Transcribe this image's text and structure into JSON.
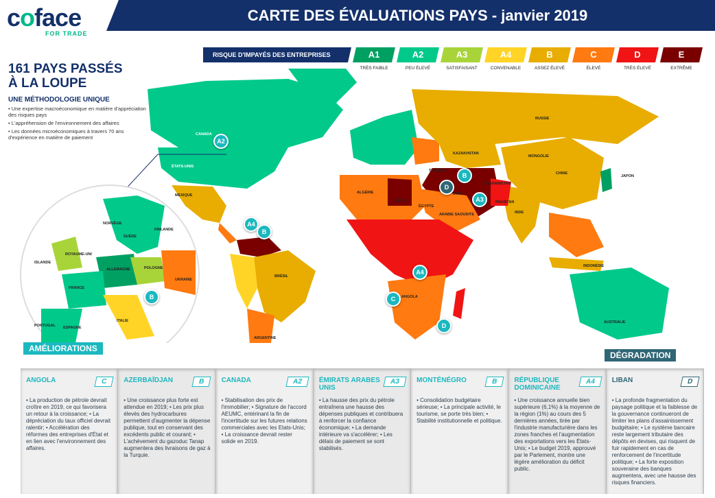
{
  "logo": {
    "brand": "coface",
    "tagline": "FOR TRADE"
  },
  "header": {
    "title": "CARTE DES ÉVALUATIONS PAYS - janvier 2019"
  },
  "legend": {
    "label": "RISQUE D'IMPAYÉS DES ENTREPRISES",
    "items": [
      {
        "code": "A1",
        "desc": "TRÈS FAIBLE",
        "color": "#00a062"
      },
      {
        "code": "A2",
        "desc": "PEU ÉLEVÉ",
        "color": "#00c98a"
      },
      {
        "code": "A3",
        "desc": "SATISFAISANT",
        "color": "#a8d43a"
      },
      {
        "code": "A4",
        "desc": "CONVENABLE",
        "color": "#ffd426"
      },
      {
        "code": "B",
        "desc": "ASSEZ ÉLEVÉ",
        "color": "#e8ad00"
      },
      {
        "code": "C",
        "desc": "ÉLEVÉ",
        "color": "#ff7a10"
      },
      {
        "code": "D",
        "desc": "TRÈS ÉLEVÉ",
        "color": "#f01414"
      },
      {
        "code": "E",
        "desc": "EXTRÊME",
        "color": "#7a0000"
      }
    ]
  },
  "intro": {
    "title_line1": "161 PAYS PASSÉS",
    "title_line2": "À LA LOUPE",
    "subtitle": "UNE MÉTHODOLOGIE UNIQUE",
    "bullets": [
      "• Une expertise macroéconomique en matière d'appréciation des risques pays",
      "• L'appréhension de l'environnement des affaires",
      "• Les données microéconomiques à travers 70 ans d'expérience en matière de paiement"
    ]
  },
  "map": {
    "labels": [
      "CANADA",
      "ÉTATS-UNIS",
      "MEXIQUE",
      "BRÉSIL",
      "ARGENTINE",
      "RUSSIE",
      "KAZAKHSTAN",
      "CHINE",
      "INDE",
      "MONGOLIE",
      "IRAN",
      "TURQUIE",
      "LIBYE",
      "ALGÉRIE",
      "ÉGYPTE",
      "AUSTRALIE",
      "NORVÈGE",
      "SUÈDE",
      "FINLANDE",
      "ALLEMAGNE",
      "FRANCE",
      "ESPAGNE",
      "ITALIE",
      "POLOGNE",
      "UKRAINE",
      "ROYAUME-UNI",
      "ISLANDE",
      "PORTUGAL",
      "ANGOLA",
      "ARABIE SAOUDITE",
      "PAKISTAN",
      "AFGHANISTAN",
      "JAPON",
      "INDONÉSIE"
    ],
    "badges": [
      "A2",
      "A4",
      "B",
      "B",
      "D",
      "A3",
      "A4",
      "C",
      "D",
      "B"
    ]
  },
  "callouts": {
    "improvements": "AMÉLIORATIONS",
    "downgrade": "DÉGRADATION"
  },
  "panels": [
    {
      "country": "ANGOLA",
      "rating": "C",
      "text": "• La production de pétrole devrait croître en 2019, ce qui favorisera un retour à la croissance; • La dépréciation du taux officiel devrait ralentir; • Accélération des réformes des entreprises d'État et en lien avec l'environnement des affaires."
    },
    {
      "country": "AZERBAÏDJAN",
      "rating": "B",
      "text": "• Une croissance plus forte est attendue en 2019; • Les prix plus élevés des hydrocarbures permettent d'augmenter la dépense publique, tout en conservant des excédents public et courant; • L'achèvement du gazoduc Tanap augmentera des livraisons de gaz à la Turquie."
    },
    {
      "country": "CANADA",
      "rating": "A2",
      "text": "• Stabilisation des prix de l'immobilier; • Signature de l'accord AEUMC, entérinant la fin de l'incertitude sur les futures relations commerciales avec les Etats-Unis; • La croissance devrait rester solide en 2019."
    },
    {
      "country": "ÉMIRATS ARABES UNIS",
      "rating": "A3",
      "text": "• La hausse des prix du pétrole entraînera une hausse des dépenses publiques et contribuera à renforcer la confiance économique; • La demande intérieure va s'accélérer; • Les délais de paiement se sont stabilisés."
    },
    {
      "country": "MONTÉNÉGRO",
      "rating": "B",
      "text": "• Consolidation budgétaire sérieuse; • La principale activité, le tourisme, se porte très bien; • Stabilité institutionnelle et politique."
    },
    {
      "country": "RÉPUBLIQUE DOMINICAINE",
      "rating": "A4",
      "text": "• Une croissance annuelle bien supérieure (6,1%) à la moyenne de la région (1%) au cours des 5 dernières années, tirée par l'industrie manufacturière dans les zones franches et l'augmentation des exportations vers les États-Unis; • Le budget 2019, approuvé par le Parlement, montre une légère amélioration du déficit public."
    },
    {
      "country": "LIBAN",
      "rating": "D",
      "text": "• La profonde fragmentation du paysage politique et la faiblesse de la gouvernance continueront de limiter les plans d'assainissement budgétaire; • Le système bancaire reste largement tributaire des dépôts en devises, qui risquent de fuir rapidement en cas de renforcement de l'incertitude politique; • La forte exposition souveraine des banques augmentera, avec une hausse des risques financiers."
    }
  ]
}
